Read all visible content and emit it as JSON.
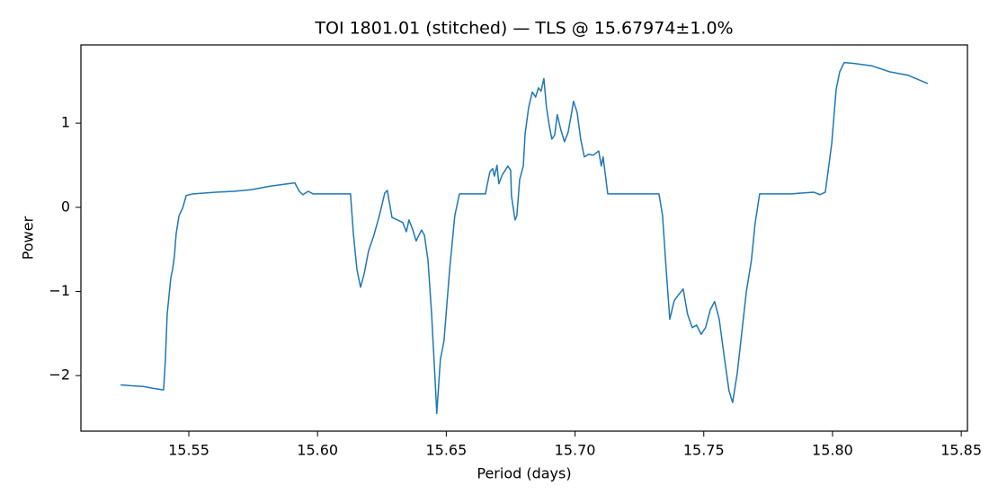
{
  "chart_data": {
    "type": "line",
    "title": "TOI 1801.01 (stitched) — TLS @ 15.67974±1.0%",
    "xlabel": "Period (days)",
    "ylabel": "Power",
    "x": [
      15.5235,
      15.5273,
      15.5325,
      15.536,
      15.5402,
      15.5409,
      15.5416,
      15.543,
      15.5437,
      15.5444,
      15.5451,
      15.5462,
      15.5476,
      15.549,
      15.5517,
      15.5605,
      15.5675,
      15.5744,
      15.5814,
      15.5884,
      15.5912,
      15.5929,
      15.5943,
      15.5964,
      15.5982,
      15.6059,
      15.6128,
      15.6139,
      15.6153,
      15.6167,
      15.6181,
      15.6198,
      15.6219,
      15.624,
      15.6261,
      15.6271,
      15.6289,
      15.631,
      15.6331,
      15.6345,
      15.6355,
      15.6369,
      15.6383,
      15.6394,
      15.6404,
      15.6415,
      15.6429,
      15.6443,
      15.6456,
      15.6463,
      15.6477,
      15.6491,
      15.6513,
      15.6533,
      15.6551,
      15.6582,
      15.6652,
      15.6669,
      15.668,
      15.6687,
      15.6697,
      15.6704,
      15.6718,
      15.6729,
      15.6739,
      15.675,
      15.6753,
      15.6767,
      15.6774,
      15.6785,
      15.6799,
      15.6806,
      15.682,
      15.6834,
      15.6847,
      15.6858,
      15.6868,
      15.6879,
      15.6889,
      15.69,
      15.691,
      15.6921,
      15.6931,
      15.6945,
      15.6959,
      15.6973,
      15.6987,
      15.6994,
      15.7008,
      15.7022,
      15.7036,
      15.7053,
      15.7071,
      15.7092,
      15.7102,
      15.7109,
      15.7127,
      15.7211,
      15.7326,
      15.734,
      15.7354,
      15.7368,
      15.7385,
      15.7402,
      15.742,
      15.7437,
      15.7455,
      15.7472,
      15.749,
      15.7507,
      15.7525,
      15.7542,
      15.756,
      15.7581,
      15.7598,
      15.7612,
      15.763,
      15.7644,
      15.7665,
      15.7685,
      15.7699,
      15.7717,
      15.7839,
      15.7927,
      15.7951,
      15.7972,
      15.7997,
      15.8014,
      15.8028,
      15.8045,
      15.8084,
      15.8154,
      15.8223,
      15.8293,
      15.837
    ],
    "series": [
      {
        "color": "#1f77b4",
        "values": [
          -2.11,
          -2.12,
          -2.13,
          -2.15,
          -2.17,
          -1.81,
          -1.27,
          -0.84,
          -0.74,
          -0.58,
          -0.31,
          -0.1,
          -0.01,
          0.14,
          0.16,
          0.18,
          0.19,
          0.21,
          0.25,
          0.28,
          0.29,
          0.19,
          0.15,
          0.19,
          0.16,
          0.16,
          0.16,
          -0.31,
          -0.74,
          -0.95,
          -0.79,
          -0.52,
          -0.33,
          -0.1,
          0.17,
          0.2,
          -0.12,
          -0.15,
          -0.18,
          -0.29,
          -0.15,
          -0.26,
          -0.4,
          -0.33,
          -0.27,
          -0.33,
          -0.63,
          -1.27,
          -2.02,
          -2.45,
          -1.81,
          -1.59,
          -0.74,
          -0.1,
          0.16,
          0.16,
          0.16,
          0.42,
          0.46,
          0.37,
          0.5,
          0.28,
          0.39,
          0.44,
          0.49,
          0.44,
          0.14,
          -0.15,
          -0.1,
          0.33,
          0.49,
          0.87,
          1.19,
          1.37,
          1.31,
          1.42,
          1.38,
          1.53,
          1.19,
          0.97,
          0.81,
          0.86,
          1.1,
          0.92,
          0.78,
          0.89,
          1.13,
          1.26,
          1.13,
          0.81,
          0.6,
          0.63,
          0.62,
          0.67,
          0.49,
          0.6,
          0.16,
          0.16,
          0.16,
          -0.1,
          -0.74,
          -1.33,
          -1.11,
          -1.04,
          -0.97,
          -1.27,
          -1.43,
          -1.4,
          -1.51,
          -1.43,
          -1.22,
          -1.12,
          -1.33,
          -1.81,
          -2.18,
          -2.32,
          -1.97,
          -1.59,
          -1.01,
          -0.63,
          -0.2,
          0.16,
          0.16,
          0.18,
          0.15,
          0.18,
          0.76,
          1.4,
          1.61,
          1.72,
          1.71,
          1.68,
          1.61,
          1.57,
          1.47
        ]
      }
    ],
    "xlim": [
      15.5081,
      15.8524
    ],
    "ylim": [
      -2.66,
      1.93
    ],
    "xticks": [
      15.55,
      {
        "value": 15.6,
        "label": "15.60"
      },
      15.65,
      {
        "value": 15.7,
        "label": "15.70"
      },
      15.75,
      {
        "value": 15.8,
        "label": "15.80"
      },
      15.85
    ],
    "yticks": [
      {
        "value": -2,
        "label": "−2"
      },
      {
        "value": -1,
        "label": "−1"
      },
      0,
      1
    ],
    "grid": false
  }
}
